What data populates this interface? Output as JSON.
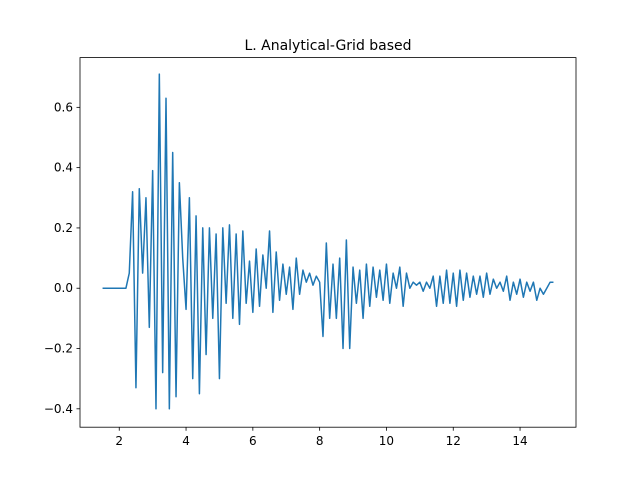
{
  "chart_data": {
    "type": "line",
    "title": "L. Analytical-Grid based",
    "x": [
      1.5,
      1.6,
      1.7,
      1.8,
      1.9,
      2.0,
      2.1,
      2.2,
      2.3,
      2.4,
      2.5,
      2.6,
      2.7,
      2.8,
      2.9,
      3.0,
      3.1,
      3.2,
      3.3,
      3.4,
      3.5,
      3.6,
      3.7,
      3.8,
      3.9,
      4.0,
      4.1,
      4.2,
      4.3,
      4.4,
      4.5,
      4.6,
      4.7,
      4.8,
      4.9,
      5.0,
      5.1,
      5.2,
      5.3,
      5.4,
      5.5,
      5.6,
      5.7,
      5.8,
      5.9,
      6.0,
      6.1,
      6.2,
      6.3,
      6.4,
      6.5,
      6.6,
      6.7,
      6.8,
      6.9,
      7.0,
      7.1,
      7.2,
      7.3,
      7.4,
      7.5,
      7.6,
      7.7,
      7.8,
      7.9,
      8.0,
      8.1,
      8.2,
      8.3,
      8.4,
      8.5,
      8.6,
      8.7,
      8.8,
      8.9,
      9.0,
      9.1,
      9.2,
      9.3,
      9.4,
      9.5,
      9.6,
      9.7,
      9.8,
      9.9,
      10.0,
      10.1,
      10.2,
      10.3,
      10.4,
      10.5,
      10.6,
      10.7,
      10.8,
      10.9,
      11.0,
      11.1,
      11.2,
      11.3,
      11.4,
      11.5,
      11.6,
      11.7,
      11.8,
      11.9,
      12.0,
      12.1,
      12.2,
      12.3,
      12.4,
      12.5,
      12.6,
      12.7,
      12.8,
      12.9,
      13.0,
      13.1,
      13.2,
      13.3,
      13.4,
      13.5,
      13.6,
      13.7,
      13.8,
      13.9,
      14.0,
      14.1,
      14.2,
      14.3,
      14.4,
      14.5,
      14.6,
      14.7,
      14.8,
      14.9,
      15.0
    ],
    "values": [
      0,
      0,
      0,
      0,
      0,
      0,
      0,
      0,
      0.05,
      0.32,
      -0.33,
      0.33,
      0.05,
      0.3,
      -0.13,
      0.39,
      -0.4,
      0.71,
      -0.28,
      0.63,
      -0.4,
      0.45,
      -0.36,
      0.35,
      0.1,
      -0.07,
      0.3,
      -0.3,
      0.24,
      -0.35,
      0.2,
      -0.22,
      0.2,
      -0.1,
      0.18,
      -0.3,
      0.2,
      -0.05,
      0.21,
      -0.1,
      0.18,
      -0.12,
      0.19,
      -0.05,
      0.09,
      -0.08,
      0.13,
      -0.06,
      0.11,
      0.0,
      0.19,
      -0.08,
      0.12,
      -0.04,
      0.08,
      -0.02,
      0.07,
      -0.07,
      0.1,
      -0.02,
      0.06,
      0.02,
      0.05,
      0.01,
      0.04,
      0.02,
      -0.16,
      0.15,
      -0.1,
      0.08,
      -0.1,
      0.1,
      -0.2,
      0.16,
      -0.2,
      0.07,
      -0.05,
      0.06,
      -0.1,
      0.08,
      -0.06,
      0.07,
      -0.03,
      0.06,
      -0.04,
      0.08,
      -0.05,
      0.05,
      0.0,
      0.07,
      -0.06,
      0.05,
      0.0,
      0.02,
      0.01,
      0.02,
      -0.01,
      0.02,
      0.0,
      0.04,
      -0.06,
      0.04,
      -0.05,
      0.06,
      -0.05,
      0.05,
      -0.06,
      0.06,
      -0.04,
      0.05,
      -0.03,
      0.04,
      -0.02,
      0.04,
      -0.03,
      0.05,
      -0.02,
      0.03,
      0.0,
      0.02,
      -0.01,
      0.04,
      -0.04,
      0.02,
      -0.02,
      0.03,
      -0.03,
      0.02,
      -0.01,
      0.02,
      -0.04,
      0.0,
      -0.02,
      0.0,
      0.02,
      0.02
    ],
    "color": "#1f77b4",
    "xlim": [
      0.825,
      15.675
    ],
    "xticks": [
      2,
      4,
      6,
      8,
      10,
      12,
      14
    ],
    "ylim": [
      -0.461,
      0.765
    ],
    "yticks": [
      {
        "value": -0.4,
        "label": "−0.4"
      },
      {
        "value": -0.2,
        "label": "−0.2"
      },
      {
        "value": 0,
        "label": "0.0"
      },
      0.2,
      0.4,
      0.6
    ]
  }
}
